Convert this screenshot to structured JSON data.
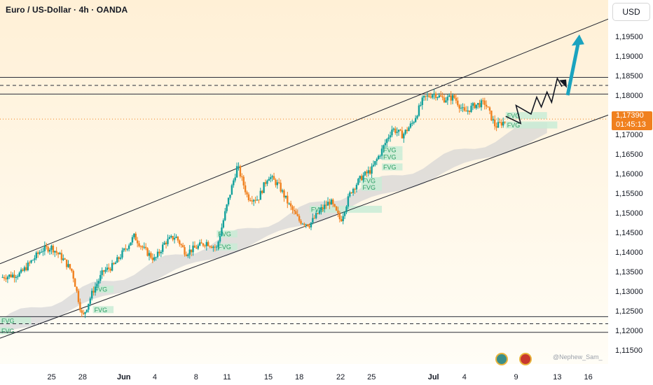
{
  "header": {
    "title": "Euro / US-Dollar · 4h · OANDA"
  },
  "axis": {
    "currency": "USD"
  },
  "price_tag": {
    "price": "1,17390",
    "countdown": "01:45:13"
  },
  "watermark": "@Nephew_Sam_",
  "colors": {
    "up": "#12a19c",
    "down": "#f0801e",
    "fvg": "#c9ecd6",
    "fvg_text": "#2a9e63",
    "cloud": "#c9cbcf",
    "arrow": "#1aa3bf",
    "bg_top": "#fff0d6",
    "bg_bottom": "#fffdf6"
  },
  "icons": [
    "tradingview-logo-icon",
    "usd-flag-icon"
  ],
  "chart_data": {
    "type": "candlestick",
    "symbol": "EURUSD",
    "timeframe": "4h",
    "ylim": [
      1.1115,
      1.201
    ],
    "y_ticks": [
      "1,19500",
      "1,19000",
      "1,18500",
      "1,18000",
      "1,17500",
      "1,17000",
      "1,16500",
      "1,16000",
      "1,15500",
      "1,15000",
      "1,14500",
      "1,14000",
      "1,13500",
      "1,13000",
      "1,12500",
      "1,12000",
      "1,11500"
    ],
    "x_ticks": [
      "25",
      "28",
      "Jun",
      "4",
      "8",
      "11",
      "15",
      "18",
      "22",
      "25",
      "Jul",
      "4",
      "9",
      "13",
      "16"
    ],
    "horizontal_levels": [
      {
        "price": 1.18455,
        "style": "solid"
      },
      {
        "price": 1.1825,
        "style": "dashed"
      },
      {
        "price": 1.1803,
        "style": "solid"
      },
      {
        "price": 1.1235,
        "style": "solid"
      },
      {
        "price": 1.1217,
        "style": "dashed"
      },
      {
        "price": 1.1195,
        "style": "solid"
      }
    ],
    "channel": {
      "upper": [
        [
          "2025-05-20",
          1.137
        ],
        [
          "2025-07-18",
          1.1995
        ]
      ],
      "lower": [
        [
          "2025-05-20",
          1.118
        ],
        [
          "2025-07-18",
          1.175
        ]
      ]
    },
    "fvg_label": "FVG",
    "fvg_zones": [
      {
        "from": "2025-06-10",
        "to": "2025-06-12",
        "price": 1.1446
      },
      {
        "from": "2025-06-10",
        "to": "2025-06-12",
        "price": 1.1413
      },
      {
        "from": "2025-05-29",
        "to": "2025-05-31",
        "price": 1.1305
      },
      {
        "from": "2025-05-29",
        "to": "2025-05-31",
        "price": 1.1253
      },
      {
        "from": "2025-05-20",
        "to": "2025-05-23",
        "price": 1.1225
      },
      {
        "from": "2025-05-20",
        "to": "2025-05-21",
        "price": 1.1199
      },
      {
        "from": "2025-06-19",
        "to": "2025-06-26",
        "price": 1.1509
      },
      {
        "from": "2025-06-24",
        "to": "2025-06-26",
        "price": 1.1565
      },
      {
        "from": "2025-06-24",
        "to": "2025-06-26",
        "price": 1.1582
      },
      {
        "from": "2025-06-26",
        "to": "2025-06-28",
        "price": 1.1617
      },
      {
        "from": "2025-06-26",
        "to": "2025-06-28",
        "price": 1.1643
      },
      {
        "from": "2025-06-26",
        "to": "2025-06-28",
        "price": 1.1661
      },
      {
        "from": "2025-07-08",
        "to": "2025-07-12",
        "price": 1.1748
      },
      {
        "from": "2025-07-08",
        "to": "2025-07-13",
        "price": 1.1724
      }
    ],
    "projection_path": [
      [
        1.1746,
        "2025-07-08"
      ],
      [
        1.1728,
        "2025-07-09"
      ],
      [
        1.1774,
        "2025-07-09"
      ],
      [
        1.1752,
        "2025-07-10"
      ],
      [
        1.1795,
        "2025-07-11"
      ],
      [
        1.177,
        "2025-07-11"
      ],
      [
        1.1808,
        "2025-07-12"
      ],
      [
        1.1782,
        "2025-07-12"
      ],
      [
        1.1843,
        "2025-07-13"
      ],
      [
        1.1822,
        "2025-07-13"
      ]
    ],
    "target_arrow": {
      "from": [
        1.18,
        "2025-07-14"
      ],
      "to": [
        1.1955,
        "2025-07-15"
      ]
    },
    "last_price": 1.1739,
    "anchors": [
      [
        "2025-05-20",
        1.1335
      ],
      [
        "2025-05-22",
        1.1345
      ],
      [
        "2025-05-24",
        1.1405
      ],
      [
        "2025-05-25",
        1.1412
      ],
      [
        "2025-05-26",
        1.1385
      ],
      [
        "2025-05-27",
        1.135
      ],
      [
        "2025-05-28",
        1.1232
      ],
      [
        "2025-05-29",
        1.13
      ],
      [
        "2025-05-30",
        1.135
      ],
      [
        "2025-05-31",
        1.1365
      ],
      [
        "2025-06-02",
        1.144
      ],
      [
        "2025-06-03",
        1.1405
      ],
      [
        "2025-06-04",
        1.138
      ],
      [
        "2025-06-05",
        1.1425
      ],
      [
        "2025-06-06",
        1.144
      ],
      [
        "2025-06-07",
        1.1398
      ],
      [
        "2025-06-09",
        1.1425
      ],
      [
        "2025-06-10",
        1.141
      ],
      [
        "2025-06-11",
        1.152
      ],
      [
        "2025-06-12",
        1.162
      ],
      [
        "2025-06-13",
        1.154
      ],
      [
        "2025-06-14",
        1.1535
      ],
      [
        "2025-06-15",
        1.1595
      ],
      [
        "2025-06-16",
        1.157
      ],
      [
        "2025-06-17",
        1.152
      ],
      [
        "2025-06-18",
        1.148
      ],
      [
        "2025-06-19",
        1.147
      ],
      [
        "2025-06-20",
        1.1505
      ],
      [
        "2025-06-21",
        1.153
      ],
      [
        "2025-06-22",
        1.148
      ],
      [
        "2025-06-23",
        1.1555
      ],
      [
        "2025-06-24",
        1.159
      ],
      [
        "2025-06-25",
        1.161
      ],
      [
        "2025-06-26",
        1.166
      ],
      [
        "2025-06-27",
        1.1715
      ],
      [
        "2025-06-28",
        1.1698
      ],
      [
        "2025-06-29",
        1.173
      ],
      [
        "2025-06-30",
        1.179
      ],
      [
        "2025-07-01",
        1.1805
      ],
      [
        "2025-07-02",
        1.179
      ],
      [
        "2025-07-03",
        1.1795
      ],
      [
        "2025-07-04",
        1.1755
      ],
      [
        "2025-07-05",
        1.1775
      ],
      [
        "2025-07-06",
        1.178
      ],
      [
        "2025-07-07",
        1.172
      ],
      [
        "2025-07-08",
        1.1735
      ]
    ]
  }
}
